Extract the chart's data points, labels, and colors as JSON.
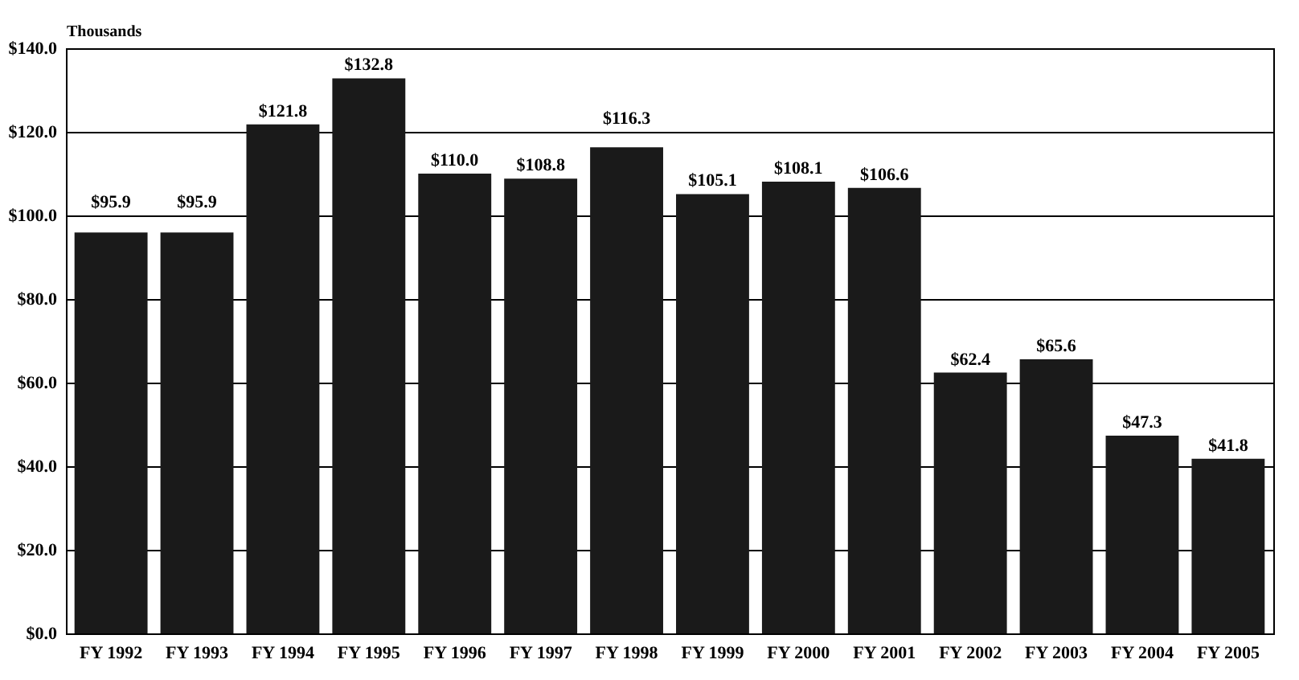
{
  "chart_data": {
    "type": "bar",
    "ylabel": "Thousands",
    "categories": [
      "FY 1992",
      "FY 1993",
      "FY 1994",
      "FY 1995",
      "FY 1996",
      "FY 1997",
      "FY 1998",
      "FY 1999",
      "FY 2000",
      "FY 2001",
      "FY 2002",
      "FY 2003",
      "FY 2004",
      "FY 2005"
    ],
    "values": [
      95.9,
      95.9,
      121.8,
      132.8,
      110.0,
      108.8,
      116.3,
      105.1,
      108.1,
      106.6,
      62.4,
      65.6,
      47.3,
      41.8
    ],
    "value_labels": [
      "$95.9",
      "$95.9",
      "$121.8",
      "$132.8",
      "$110.0",
      "$108.8",
      "$116.3",
      "$105.1",
      "$108.1",
      "$106.6",
      "$62.4",
      "$65.6",
      "$47.3",
      "$41.8"
    ],
    "color": "#1a1a1a",
    "ylim": [
      0,
      140
    ],
    "yticks": [
      {
        "value": 0,
        "label": "$0.0"
      },
      {
        "value": 20,
        "label": "$20.0"
      },
      {
        "value": 40,
        "label": "$40.0"
      },
      {
        "value": 60,
        "label": "$60.0"
      },
      {
        "value": 80,
        "label": "$80.0"
      },
      {
        "value": 100,
        "label": "$100.0"
      },
      {
        "value": 120,
        "label": "$120.0"
      },
      {
        "value": 140,
        "label": "$140.0"
      }
    ],
    "grid": "y"
  }
}
